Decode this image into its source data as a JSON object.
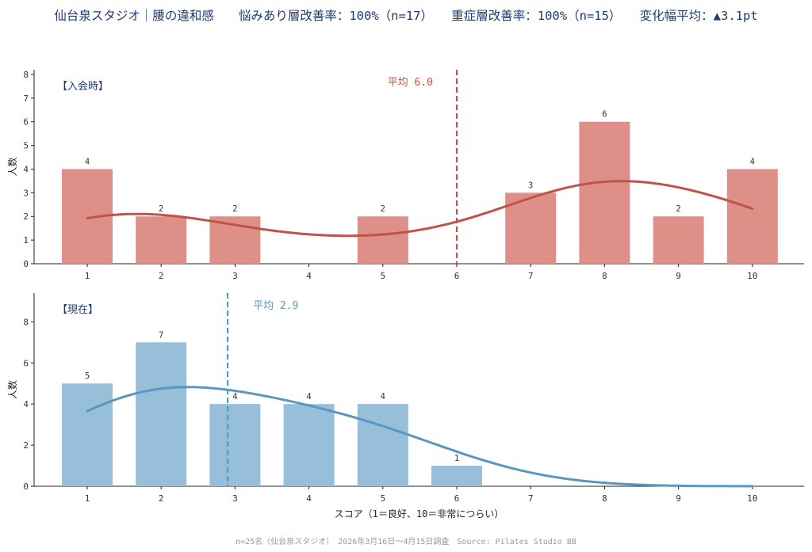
{
  "header": {
    "title": "仙台泉スタジオ｜腰の違和感　　悩みあり層改善率：100%（n=17）　　重症層改善率：100%（n=15）　　変化幅平均：▲3.1pt"
  },
  "footer": {
    "note": "n=25名（仙台泉スタジオ）　2026年3月16日～4月15日調査　Source: Pilates Studio BB"
  },
  "colors": {
    "before_bar": "#dd8f88",
    "before_line": "#c0524a",
    "after_bar": "#97bfda",
    "after_line": "#5a96c0"
  },
  "chart_data": [
    {
      "type": "bar",
      "panel_label": "【入会時】",
      "categories": [
        "1",
        "2",
        "3",
        "4",
        "5",
        "6",
        "7",
        "8",
        "9",
        "10"
      ],
      "values": [
        4,
        2,
        2,
        0,
        2,
        0,
        3,
        6,
        2,
        4
      ],
      "value_labels": [
        "4",
        "2",
        "2",
        "",
        "2",
        "",
        "3",
        "6",
        "2",
        "4"
      ],
      "ylabel": "人数",
      "xlabel": "",
      "ylim": [
        0,
        8.2
      ],
      "yticks": [
        0,
        1,
        2,
        3,
        4,
        5,
        6,
        7,
        8
      ],
      "mean": 6.0,
      "mean_label": "平均 6.0",
      "curve": true
    },
    {
      "type": "bar",
      "panel_label": "【現在】",
      "categories": [
        "1",
        "2",
        "3",
        "4",
        "5",
        "6",
        "7",
        "8",
        "9",
        "10"
      ],
      "values": [
        5,
        7,
        4,
        4,
        4,
        1,
        0,
        0,
        0,
        0
      ],
      "value_labels": [
        "5",
        "7",
        "4",
        "4",
        "4",
        "1",
        "",
        "",
        "",
        ""
      ],
      "ylabel": "人数",
      "xlabel": "スコア（1＝良好、10＝非常につらい）",
      "ylim": [
        0,
        9.4
      ],
      "yticks": [
        0,
        2,
        4,
        6,
        8
      ],
      "mean": 2.9,
      "mean_label": "平均 2.9",
      "curve": true
    }
  ]
}
